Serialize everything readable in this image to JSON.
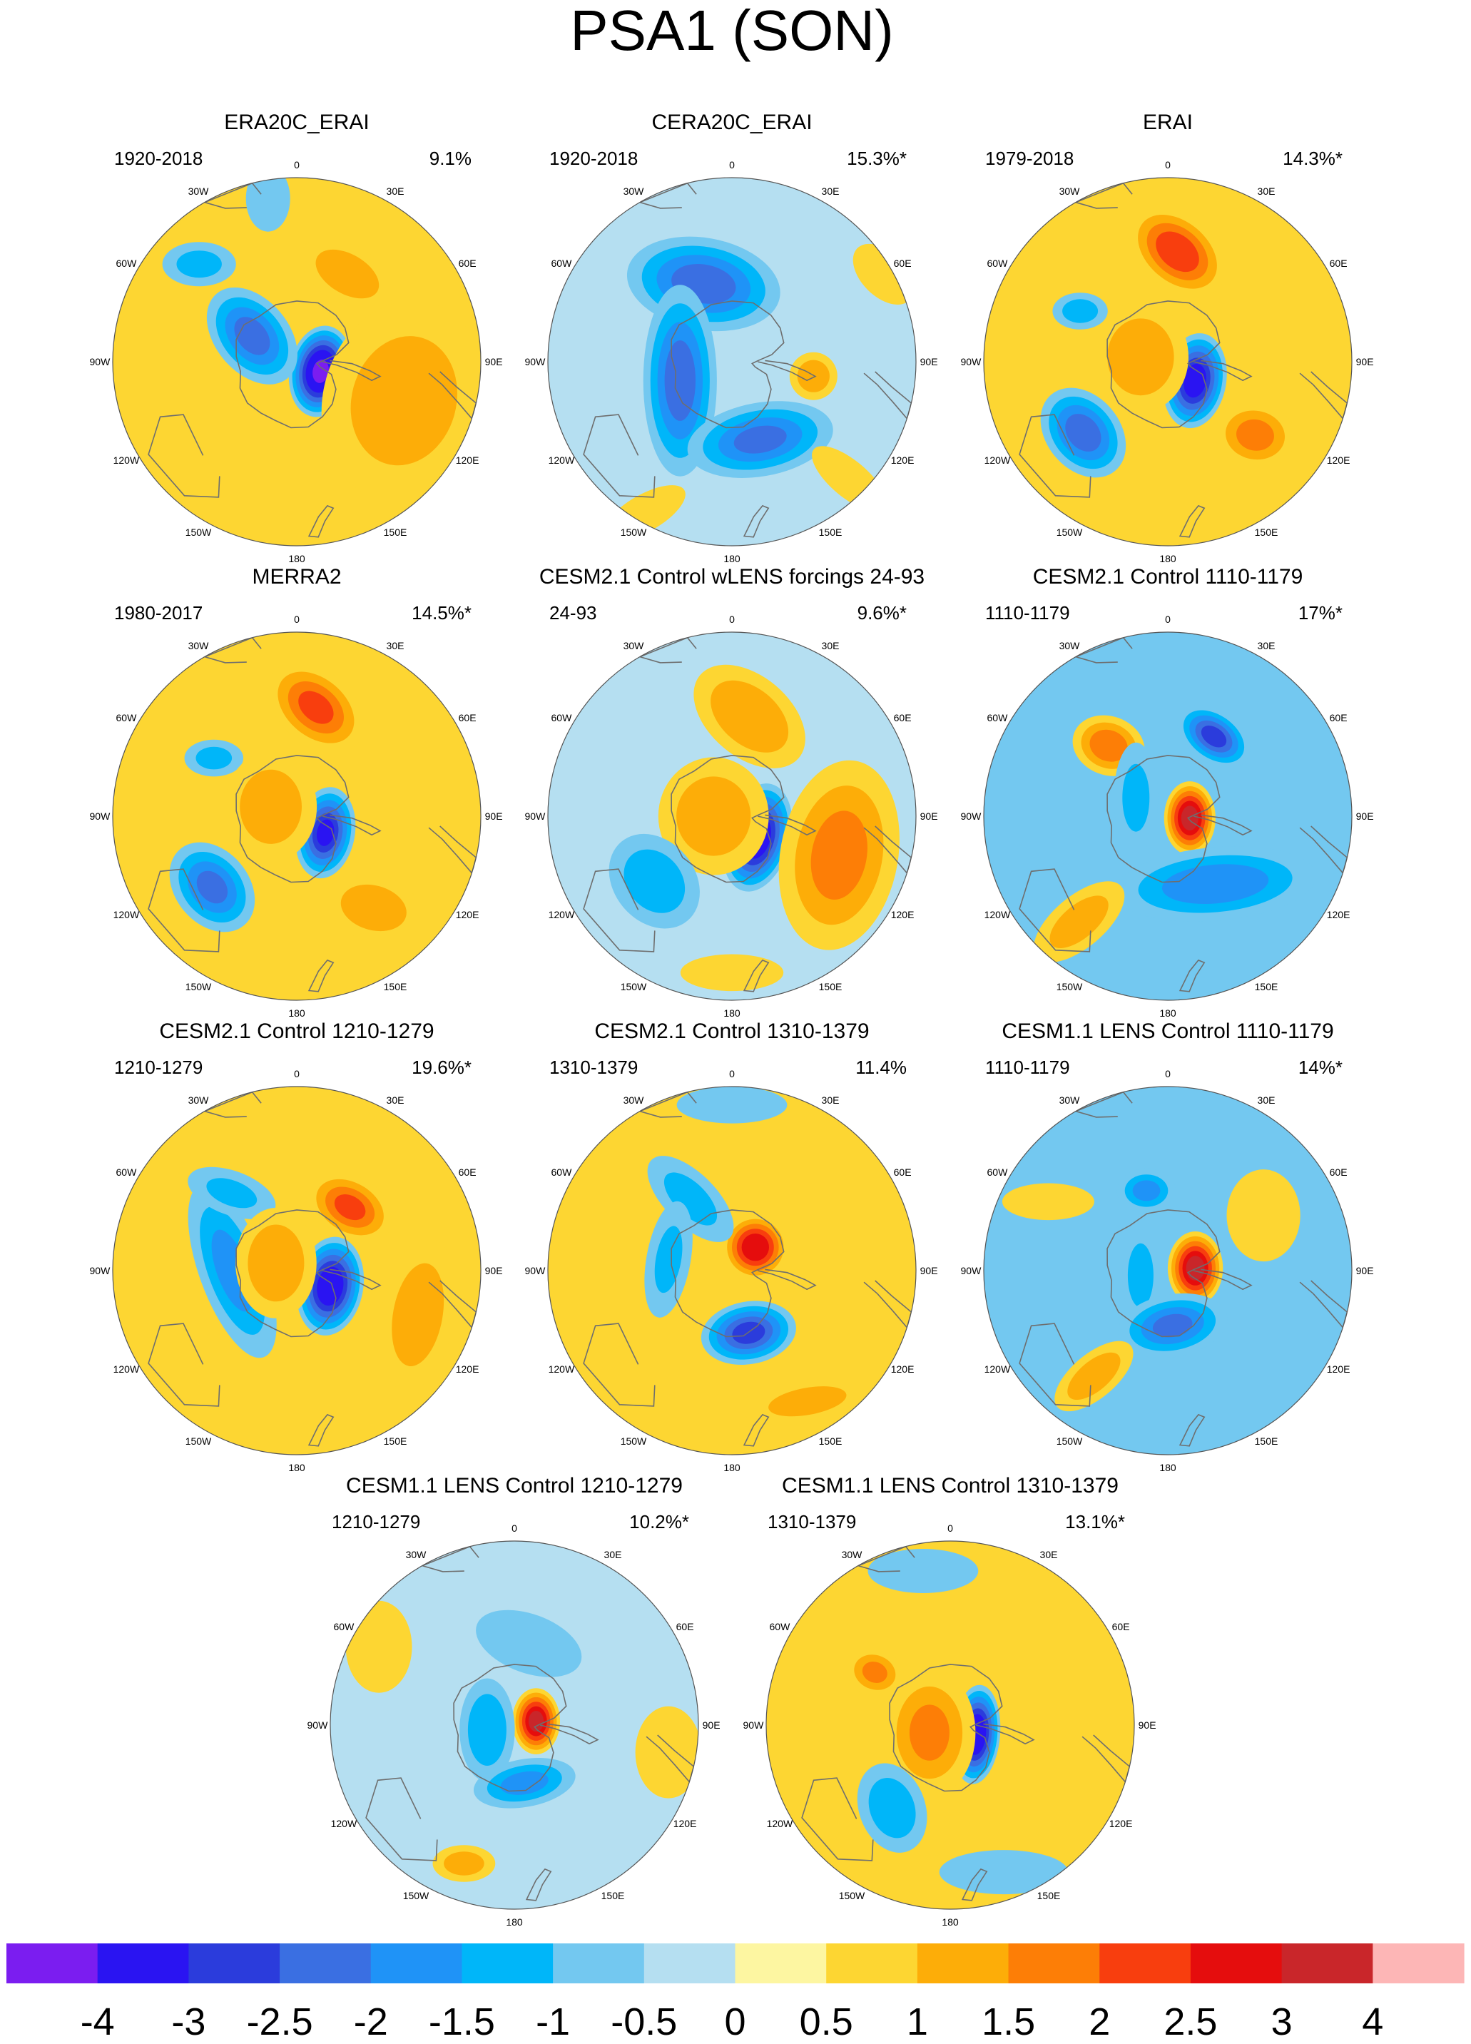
{
  "title": "PSA1 (SON)",
  "colors": {
    "text": "#000000",
    "coast": "#6e6e6e",
    "rim": "#555555",
    "land_neutral": "#fbf2a0"
  },
  "palette": {
    "levels": [
      "-4",
      "-3",
      "-2.5",
      "-2",
      "-1.5",
      "-1",
      "-0.5",
      "0",
      "0.5",
      "1",
      "1.5",
      "2",
      "2.5",
      "3",
      "4"
    ],
    "colors": [
      "#7b1df0",
      "#2a14f2",
      "#2b3cdc",
      "#3a6fe2",
      "#1f93f7",
      "#00b6f9",
      "#73c8f0",
      "#b5dff1",
      "#fdf6a1",
      "#fdd632",
      "#fdad08",
      "#fd7e06",
      "#f83e0e",
      "#e50d0d",
      "#c9262a",
      "#fdb6b6"
    ]
  },
  "lon_labels": [
    "0",
    "30E",
    "60E",
    "90E",
    "120E",
    "150E",
    "180",
    "150W",
    "120W",
    "90W",
    "60W",
    "30W"
  ],
  "panels": [
    {
      "title": "ERA20C_ERAI",
      "period": "1920-2018",
      "variance": "9.1%",
      "background": 0.5,
      "blobs": [
        {
          "lon": 112,
          "r": 0.14,
          "rx": 0.17,
          "ry": 0.25,
          "rot": 10,
          "v": -4
        },
        {
          "lon": 110,
          "r": 0.62,
          "rx": 0.44,
          "ry": 0.55,
          "rot": 15,
          "v": 1.2
        },
        {
          "lon": 30,
          "r": 0.55,
          "rx": 0.28,
          "ry": 0.16,
          "rot": 30,
          "v": 1.3
        },
        {
          "lon": -60,
          "r": 0.28,
          "rx": 0.2,
          "ry": 0.3,
          "rot": -40,
          "v": -2.1
        },
        {
          "lon": -45,
          "r": 0.75,
          "rx": 0.2,
          "ry": 0.12,
          "rot": 0,
          "v": -1.1
        },
        {
          "lon": -10,
          "r": 0.9,
          "rx": 0.12,
          "ry": 0.18,
          "rot": 0,
          "v": -0.6
        }
      ]
    },
    {
      "title": "CERA20C_ERAI",
      "period": "1920-2018",
      "variance": "15.3%*",
      "background": -0.5,
      "blobs": [
        {
          "lon": -20,
          "r": 0.45,
          "rx": 0.42,
          "ry": 0.25,
          "rot": 10,
          "v": -2.2
        },
        {
          "lon": -110,
          "r": 0.3,
          "rx": 0.2,
          "ry": 0.52,
          "rot": 0,
          "v": -2.2
        },
        {
          "lon": 160,
          "r": 0.45,
          "rx": 0.4,
          "ry": 0.2,
          "rot": -10,
          "v": -2.0
        },
        {
          "lon": 100,
          "r": 0.45,
          "rx": 0.13,
          "ry": 0.13,
          "rot": 0,
          "v": 1.3
        },
        {
          "lon": 135,
          "r": 0.9,
          "rx": 0.25,
          "ry": 0.1,
          "rot": 40,
          "v": 0.5
        },
        {
          "lon": -150,
          "r": 0.95,
          "rx": 0.25,
          "ry": 0.1,
          "rot": -30,
          "v": 0.5
        },
        {
          "lon": 60,
          "r": 0.95,
          "rx": 0.2,
          "ry": 0.12,
          "rot": 45,
          "v": 0.5
        }
      ]
    },
    {
      "title": "ERAI",
      "period": "1979-2018",
      "variance": "14.3%*",
      "background": 0.5,
      "blobs": [
        {
          "lon": 125,
          "r": 0.18,
          "rx": 0.17,
          "ry": 0.26,
          "rot": 10,
          "v": -3.3
        },
        {
          "lon": 5,
          "r": 0.6,
          "rx": 0.3,
          "ry": 0.2,
          "rot": 40,
          "v": 2.3
        },
        {
          "lon": -130,
          "r": 0.6,
          "rx": 0.2,
          "ry": 0.27,
          "rot": -40,
          "v": -2.2
        },
        {
          "lon": -60,
          "r": 0.55,
          "rx": 0.15,
          "ry": 0.1,
          "rot": 0,
          "v": -1.2
        },
        {
          "lon": 130,
          "r": 0.62,
          "rx": 0.22,
          "ry": 0.18,
          "rot": 10,
          "v": 1.6
        },
        {
          "lon": -80,
          "r": 0.15,
          "rx": 0.26,
          "ry": 0.3,
          "rot": 0,
          "v": 1.4
        }
      ]
    },
    {
      "title": "MERRA2",
      "period": "1980-2017",
      "variance": "14.5%*",
      "background": 0.5,
      "blobs": [
        {
          "lon": 120,
          "r": 0.18,
          "rx": 0.16,
          "ry": 0.25,
          "rot": 10,
          "v": -3.0
        },
        {
          "lon": 10,
          "r": 0.6,
          "rx": 0.3,
          "ry": 0.2,
          "rot": 40,
          "v": 2.0
        },
        {
          "lon": -130,
          "r": 0.6,
          "rx": 0.2,
          "ry": 0.27,
          "rot": -40,
          "v": -2.0
        },
        {
          "lon": -55,
          "r": 0.55,
          "rx": 0.16,
          "ry": 0.1,
          "rot": 0,
          "v": -1.1
        },
        {
          "lon": 140,
          "r": 0.65,
          "rx": 0.27,
          "ry": 0.18,
          "rot": 15,
          "v": 1.3
        },
        {
          "lon": -70,
          "r": 0.15,
          "rx": 0.25,
          "ry": 0.3,
          "rot": 0,
          "v": 1.3
        }
      ]
    },
    {
      "title": "CESM2.1 Control wLENS forcings 24-93",
      "period": "24-93",
      "variance": "9.6%*",
      "background": -0.5,
      "blobs": [
        {
          "lon": 130,
          "r": 0.18,
          "rx": 0.18,
          "ry": 0.3,
          "rot": 15,
          "v": -3.5
        },
        {
          "lon": 10,
          "r": 0.55,
          "rx": 0.35,
          "ry": 0.22,
          "rot": 40,
          "v": 1.4
        },
        {
          "lon": -90,
          "r": 0.1,
          "rx": 0.3,
          "ry": 0.32,
          "rot": 0,
          "v": 1.3
        },
        {
          "lon": 110,
          "r": 0.62,
          "rx": 0.32,
          "ry": 0.52,
          "rot": 10,
          "v": 1.6
        },
        {
          "lon": -130,
          "r": 0.55,
          "rx": 0.22,
          "ry": 0.28,
          "rot": -40,
          "v": -1.3
        },
        {
          "lon": 180,
          "r": 0.85,
          "rx": 0.28,
          "ry": 0.1,
          "rot": 0,
          "v": 0.5
        }
      ]
    },
    {
      "title": "CESM2.1 Control 1110-1179",
      "period": "1110-1179",
      "variance": "17%*",
      "background": -0.6,
      "blobs": [
        {
          "lon": 95,
          "r": 0.12,
          "rx": 0.14,
          "ry": 0.2,
          "rot": 0,
          "v": 3.2
        },
        {
          "lon": 30,
          "r": 0.5,
          "rx": 0.22,
          "ry": 0.14,
          "rot": 35,
          "v": -2.6
        },
        {
          "lon": -40,
          "r": 0.5,
          "rx": 0.2,
          "ry": 0.16,
          "rot": 20,
          "v": 1.8
        },
        {
          "lon": 145,
          "r": 0.45,
          "rx": 0.55,
          "ry": 0.2,
          "rot": -5,
          "v": -1.8
        },
        {
          "lon": -140,
          "r": 0.75,
          "rx": 0.3,
          "ry": 0.14,
          "rot": -40,
          "v": 1.2
        },
        {
          "lon": -60,
          "r": 0.2,
          "rx": 0.12,
          "ry": 0.3,
          "rot": 0,
          "v": -1.1
        }
      ]
    },
    {
      "title": "CESM2.1 Control 1210-1279",
      "period": "1210-1279",
      "variance": "19.6%*",
      "background": 0.5,
      "blobs": [
        {
          "lon": 115,
          "r": 0.2,
          "rx": 0.18,
          "ry": 0.27,
          "rot": 10,
          "v": -3.5
        },
        {
          "lon": 40,
          "r": 0.45,
          "rx": 0.25,
          "ry": 0.17,
          "rot": 30,
          "v": 2.0
        },
        {
          "lon": -90,
          "r": 0.35,
          "rx": 0.18,
          "ry": 0.5,
          "rot": -20,
          "v": -1.6
        },
        {
          "lon": -40,
          "r": 0.55,
          "rx": 0.25,
          "ry": 0.12,
          "rot": 20,
          "v": -1.0
        },
        {
          "lon": -70,
          "r": 0.12,
          "rx": 0.22,
          "ry": 0.3,
          "rot": 0,
          "v": 1.4
        },
        {
          "lon": 110,
          "r": 0.7,
          "rx": 0.2,
          "ry": 0.42,
          "rot": 10,
          "v": 1.3
        }
      ]
    },
    {
      "title": "CESM2.1 Control 1310-1379",
      "period": "1310-1379",
      "variance": "11.4%",
      "background": 0.5,
      "blobs": [
        {
          "lon": 45,
          "r": 0.18,
          "rx": 0.18,
          "ry": 0.18,
          "rot": 0,
          "v": 2.9
        },
        {
          "lon": 165,
          "r": 0.35,
          "rx": 0.26,
          "ry": 0.17,
          "rot": -10,
          "v": -2.6
        },
        {
          "lon": -30,
          "r": 0.45,
          "rx": 0.3,
          "ry": 0.14,
          "rot": 45,
          "v": -1.1
        },
        {
          "lon": -80,
          "r": 0.35,
          "rx": 0.12,
          "ry": 0.32,
          "rot": 10,
          "v": -1.0
        },
        {
          "lon": 150,
          "r": 0.82,
          "rx": 0.35,
          "ry": 0.12,
          "rot": -10,
          "v": 1.1
        },
        {
          "lon": 0,
          "r": 0.9,
          "rx": 0.3,
          "ry": 0.1,
          "rot": 0,
          "v": -0.6
        }
      ]
    },
    {
      "title": "CESM1.1 LENS Control 1110-1179",
      "period": "1110-1179",
      "variance": "14%*",
      "background": -0.55,
      "blobs": [
        {
          "lon": 85,
          "r": 0.15,
          "rx": 0.15,
          "ry": 0.2,
          "rot": 0,
          "v": 3.2
        },
        {
          "lon": -100,
          "r": 0.15,
          "rx": 0.1,
          "ry": 0.25,
          "rot": 0,
          "v": -1.4
        },
        {
          "lon": 175,
          "r": 0.3,
          "rx": 0.3,
          "ry": 0.17,
          "rot": -10,
          "v": -2.0
        },
        {
          "lon": -15,
          "r": 0.45,
          "rx": 0.16,
          "ry": 0.12,
          "rot": 0,
          "v": -1.6
        },
        {
          "lon": -145,
          "r": 0.7,
          "rx": 0.26,
          "ry": 0.12,
          "rot": -40,
          "v": 1.3
        },
        {
          "lon": 60,
          "r": 0.6,
          "rx": 0.2,
          "ry": 0.25,
          "rot": 0,
          "v": 0.5
        },
        {
          "lon": -60,
          "r": 0.75,
          "rx": 0.25,
          "ry": 0.1,
          "rot": 0,
          "v": 0.5
        }
      ]
    },
    {
      "title": "CESM1.1 LENS Control 1210-1279",
      "period": "1210-1279",
      "variance": "10.2%*",
      "background": -0.5,
      "blobs": [
        {
          "lon": 80,
          "r": 0.12,
          "rx": 0.13,
          "ry": 0.18,
          "rot": 0,
          "v": 3.1
        },
        {
          "lon": -100,
          "r": 0.15,
          "rx": 0.15,
          "ry": 0.28,
          "rot": 0,
          "v": -1.4
        },
        {
          "lon": 170,
          "r": 0.32,
          "rx": 0.28,
          "ry": 0.13,
          "rot": -10,
          "v": -1.6
        },
        {
          "lon": 10,
          "r": 0.45,
          "rx": 0.3,
          "ry": 0.16,
          "rot": 20,
          "v": -0.9
        },
        {
          "lon": -160,
          "r": 0.8,
          "rx": 0.17,
          "ry": 0.1,
          "rot": 0,
          "v": 1.2
        },
        {
          "lon": 100,
          "r": 0.85,
          "rx": 0.18,
          "ry": 0.25,
          "rot": 0,
          "v": 0.6
        },
        {
          "lon": -60,
          "r": 0.85,
          "rx": 0.18,
          "ry": 0.25,
          "rot": 0,
          "v": 0.6
        }
      ]
    },
    {
      "title": "CESM1.1 LENS Control 1310-1379",
      "period": "1310-1379",
      "variance": "13.1%*",
      "background": 0.5,
      "blobs": [
        {
          "lon": 110,
          "r": 0.15,
          "rx": 0.13,
          "ry": 0.27,
          "rot": 5,
          "v": -3.6
        },
        {
          "lon": -110,
          "r": 0.12,
          "rx": 0.25,
          "ry": 0.35,
          "rot": 0,
          "v": 1.5
        },
        {
          "lon": -55,
          "r": 0.5,
          "rx": 0.16,
          "ry": 0.13,
          "rot": 20,
          "v": 1.5
        },
        {
          "lon": -145,
          "r": 0.55,
          "rx": 0.18,
          "ry": 0.25,
          "rot": -20,
          "v": -1.3
        },
        {
          "lon": -10,
          "r": 0.85,
          "rx": 0.3,
          "ry": 0.12,
          "rot": 0,
          "v": -0.6
        },
        {
          "lon": 160,
          "r": 0.85,
          "rx": 0.35,
          "ry": 0.12,
          "rot": 0,
          "v": -0.6
        }
      ]
    }
  ]
}
